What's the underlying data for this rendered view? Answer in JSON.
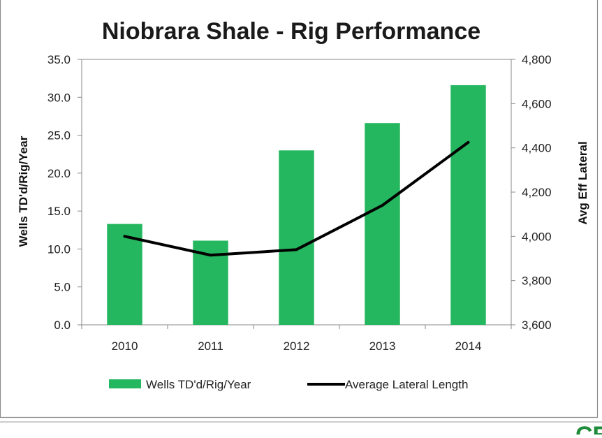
{
  "chart_data": {
    "type": "bar",
    "title": "Niobrara Shale - Rig Performance",
    "categories": [
      "2010",
      "2011",
      "2012",
      "2013",
      "2014"
    ],
    "series": [
      {
        "name": "Wells TD'd/Rig/Year",
        "type": "bar",
        "axis": "left",
        "color": "#24b75f",
        "values": [
          13.3,
          11.1,
          23.0,
          26.6,
          31.6
        ]
      },
      {
        "name": "Average Lateral Length",
        "type": "line",
        "axis": "right",
        "color": "#000000",
        "values": [
          4000,
          3915,
          3940,
          4140,
          4425
        ]
      }
    ],
    "ylabel": "Wells TD'd/Rig/Year",
    "ylabel_right": "Avg Eff Lateral",
    "ylim": [
      0,
      35
    ],
    "ylim_right": [
      3600,
      4800
    ],
    "yticks": [
      "0.0",
      "5.0",
      "10.0",
      "15.0",
      "20.0",
      "25.0",
      "30.0",
      "35.0"
    ],
    "yticks_right": [
      "3,600",
      "3,800",
      "4,000",
      "4,200",
      "4,400",
      "4,600",
      "4,800"
    ],
    "grid": false,
    "legend_position": "bottom"
  },
  "logo": {
    "text": "CE",
    "color": "#1e8c3a"
  }
}
